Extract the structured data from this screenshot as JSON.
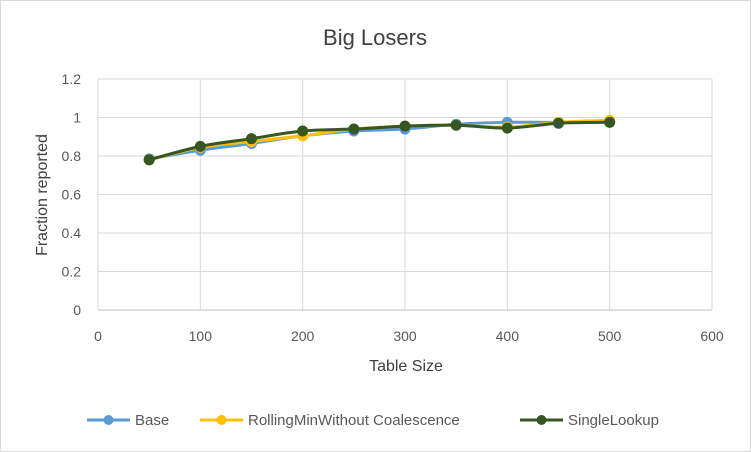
{
  "chart_data": {
    "type": "line",
    "title": "Big Losers",
    "xlabel": "Table Size",
    "ylabel": "Fraction reported",
    "xlim": [
      0,
      600
    ],
    "ylim": [
      0,
      1.2
    ],
    "x_ticks": [
      0,
      100,
      200,
      300,
      400,
      500,
      600
    ],
    "y_ticks": [
      0,
      0.2,
      0.4,
      0.6,
      0.8,
      1,
      1.2
    ],
    "x_tick_labels": [
      "0",
      "100",
      "200",
      "300",
      "400",
      "500",
      "600"
    ],
    "y_tick_labels": [
      "0",
      "0.2",
      "0.4",
      "0.6",
      "0.8",
      "1",
      "1.2"
    ],
    "grid": true,
    "legend_position": "bottom",
    "series": [
      {
        "name": "Base",
        "color": "#5b9bd5",
        "x": [
          50,
          100,
          150,
          200,
          250,
          300,
          350,
          400,
          450,
          500
        ],
        "y": [
          0.785,
          0.83,
          0.865,
          0.905,
          0.93,
          0.94,
          0.965,
          0.975,
          0.975,
          0.98
        ]
      },
      {
        "name": "RollingMinWithout Coalescence",
        "color": "#ffc000",
        "x": [
          50,
          100,
          150,
          200,
          250,
          300,
          350,
          400,
          450,
          500
        ],
        "y": [
          0.78,
          0.845,
          0.875,
          0.905,
          0.94,
          0.955,
          0.96,
          0.95,
          0.975,
          0.985
        ]
      },
      {
        "name": "SingleLookup",
        "color": "#375623",
        "x": [
          50,
          100,
          150,
          200,
          250,
          300,
          350,
          400,
          450,
          500
        ],
        "y": [
          0.78,
          0.85,
          0.89,
          0.93,
          0.94,
          0.955,
          0.96,
          0.945,
          0.97,
          0.975
        ]
      }
    ]
  }
}
